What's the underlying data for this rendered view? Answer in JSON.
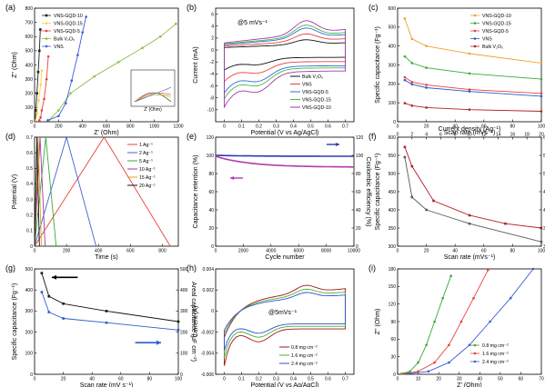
{
  "chart_data": [
    {
      "type": "line",
      "panel": "(a)",
      "xlabel": "Z' (Ohm)",
      "ylabel": "Z'' (Ohm)",
      "xlim": [
        0,
        1200
      ],
      "ylim": [
        0,
        800
      ],
      "xticks": [
        0,
        200,
        400,
        600,
        800,
        1000,
        1200
      ],
      "yticks": [
        0,
        100,
        200,
        300,
        400,
        500,
        600,
        700,
        800
      ],
      "legend": "top-left",
      "series": [
        {
          "name": "VNS-GQD-10",
          "color": "#222222",
          "marker": "square",
          "points": [
            [
              5,
              5
            ],
            [
              10,
              80
            ],
            [
              20,
              200
            ],
            [
              30,
              350
            ],
            [
              40,
              500
            ],
            [
              48,
              650
            ]
          ]
        },
        {
          "name": "VNS-GQD-15",
          "color": "#ffd23c",
          "marker": "circle",
          "points": [
            [
              10,
              10
            ],
            [
              20,
              60
            ],
            [
              35,
              150
            ],
            [
              50,
              260
            ],
            [
              60,
              360
            ]
          ]
        },
        {
          "name": "VNS-GQD-5",
          "color": "#e8413c",
          "marker": "circle",
          "points": [
            [
              40,
              10
            ],
            [
              50,
              30
            ],
            [
              60,
              80
            ],
            [
              80,
              160
            ],
            [
              100,
              300
            ],
            [
              115,
              460
            ]
          ]
        },
        {
          "name": "Bulk V₂O₅",
          "color": "#8cbc3c",
          "marker": "circle",
          "points": [
            [
              120,
              10
            ],
            [
              200,
              80
            ],
            [
              300,
              200
            ],
            [
              500,
              320
            ],
            [
              700,
              420
            ],
            [
              900,
              520
            ],
            [
              1050,
              600
            ],
            [
              1180,
              690
            ]
          ]
        },
        {
          "name": "VNS",
          "color": "#3c5cdc",
          "marker": "circle",
          "points": [
            [
              110,
              10
            ],
            [
              200,
              40
            ],
            [
              260,
              130
            ],
            [
              310,
              290
            ],
            [
              360,
              470
            ],
            [
              400,
              630
            ],
            [
              430,
              740
            ]
          ]
        }
      ],
      "inset": {
        "xlabel": "Z' (Ohm)",
        "ylabel": "Z'' (Ohm)",
        "series_colors": [
          "#222222",
          "#ffd23c",
          "#e8413c",
          "#8cbc3c",
          "#3c5cdc"
        ]
      }
    },
    {
      "type": "line",
      "panel": "(b)",
      "xlabel": "Potential (V vs Ag/AgCl)",
      "ylabel": "Current (mA)",
      "xlim": [
        -0.05,
        0.75
      ],
      "ylim": [
        -12,
        7
      ],
      "xticks": [
        0.0,
        0.1,
        0.2,
        0.3,
        0.4,
        0.5,
        0.6,
        0.7
      ],
      "yticks": [
        -10,
        -8,
        -6,
        -4,
        -2,
        0,
        2,
        4,
        6
      ],
      "annotation": "@5 mVs⁻¹",
      "legend": "bottom-right",
      "series": [
        {
          "name": "Bulk V₂O₅",
          "color": "#111111",
          "amp": 0.35
        },
        {
          "name": "VNS",
          "color": "#e8413c",
          "amp": 0.55
        },
        {
          "name": "VNS-GQD-5",
          "color": "#2a6fd0",
          "amp": 0.75
        },
        {
          "name": "VNS-GQD-15",
          "color": "#48b848",
          "amp": 0.85
        },
        {
          "name": "VNS-GQD-10",
          "color": "#a23aa8",
          "amp": 1.0
        }
      ]
    },
    {
      "type": "line",
      "panel": "(c)",
      "xlabel": "Scan rate (mVs⁻¹)",
      "ylabel": "Specific capacitance (Fg⁻¹)",
      "x": [
        5,
        10,
        20,
        50,
        100
      ],
      "xlim": [
        0,
        100
      ],
      "ylim": [
        0,
        600
      ],
      "xticks": [
        0,
        20,
        40,
        60,
        80,
        100
      ],
      "yticks": [
        0,
        100,
        200,
        300,
        400,
        500,
        600
      ],
      "legend": "top-right",
      "series": [
        {
          "name": "VNS-GQD-10",
          "color": "#f0a030",
          "values": [
            545,
            438,
            400,
            360,
            310
          ]
        },
        {
          "name": "VNS-GQD-15",
          "color": "#3aa83a",
          "values": [
            345,
            310,
            285,
            255,
            225
          ]
        },
        {
          "name": "VNS-GQD-5",
          "color": "#e8413c",
          "values": [
            235,
            210,
            195,
            170,
            150
          ]
        },
        {
          "name": "VNS",
          "color": "#2a5cd0",
          "values": [
            220,
            198,
            180,
            160,
            135
          ]
        },
        {
          "name": "Bulk V₂O₅",
          "color": "#b02020",
          "values": [
            98,
            85,
            75,
            64,
            55
          ]
        }
      ]
    },
    {
      "type": "line",
      "panel": "(d)",
      "xlabel": "Time (s)",
      "ylabel": "Potential (V)",
      "xlim": [
        0,
        900
      ],
      "ylim": [
        0,
        0.7
      ],
      "xticks": [
        0,
        200,
        400,
        600,
        800
      ],
      "yticks": [
        0.0,
        0.1,
        0.2,
        0.3,
        0.4,
        0.5,
        0.6,
        0.7
      ],
      "legend": "top-right",
      "series": [
        {
          "name": "1 Ag⁻¹",
          "color": "#e8413c",
          "charge_end": 435,
          "discharge_end": 850
        },
        {
          "name": "2 Ag⁻¹",
          "color": "#3c64d8",
          "charge_end": 200,
          "discharge_end": 385
        },
        {
          "name": "5 Ag⁻¹",
          "color": "#3aa83a",
          "charge_end": 70,
          "discharge_end": 135
        },
        {
          "name": "10 Ag⁻¹",
          "color": "#a23aa8",
          "charge_end": 34,
          "discharge_end": 66
        },
        {
          "name": "15 Ag⁻¹",
          "color": "#e0a020",
          "charge_end": 22,
          "discharge_end": 43
        },
        {
          "name": "20 Ag⁻¹",
          "color": "#111111",
          "charge_end": 15,
          "discharge_end": 30
        }
      ]
    },
    {
      "type": "line",
      "panel": "(e)",
      "xlabel": "Cycle number",
      "ylabel": "Capacitance retention (%)",
      "ylabel2": "Coulombic efficiency (%)",
      "xlim": [
        0,
        10000
      ],
      "ylim": [
        0,
        120
      ],
      "xticks": [
        0,
        2000,
        4000,
        6000,
        8000,
        10000
      ],
      "yticks": [
        0,
        20,
        40,
        60,
        80,
        100,
        120
      ],
      "series": [
        {
          "name": "Coulombic efficiency",
          "color": "#2a3cb0",
          "start": 100,
          "end": 99
        },
        {
          "name": "Capacitance retention",
          "color": "#b03ab0",
          "start": 99,
          "end": 87
        }
      ]
    },
    {
      "type": "line",
      "panel": "(f)",
      "xlabel": "Scan rate (mVs⁻¹)",
      "ylabel": "Specific capacitance (Fg⁻¹)",
      "ylabel2": "Specific capacitance (Fg⁻¹)",
      "xlabel2": "Current density (Ag⁻¹)",
      "xlim": [
        0,
        100
      ],
      "ylim": [
        300,
        600
      ],
      "xticks": [
        0,
        20,
        40,
        60,
        80,
        100
      ],
      "yticks": [
        300,
        350,
        400,
        450,
        500,
        550,
        600
      ],
      "xticks2": [
        0,
        2,
        4,
        6,
        8,
        10,
        12,
        14,
        16,
        18,
        20
      ],
      "yticks2": [
        300,
        350,
        400,
        450,
        500,
        550,
        600
      ],
      "series": [
        {
          "name": "Scan rate",
          "color": "#5a5a5a",
          "x": [
            5,
            10,
            20,
            50,
            100
          ],
          "values": [
            545,
            435,
            400,
            362,
            312
          ]
        },
        {
          "name": "Current density",
          "color": "#b02030",
          "x": [
            1,
            2,
            5,
            10,
            15,
            20
          ],
          "values": [
            573,
            520,
            425,
            385,
            362,
            350
          ]
        }
      ]
    },
    {
      "type": "line",
      "panel": "(g)",
      "xlabel": "Scan rate (mV s⁻¹)",
      "ylabel": "Specific capacitance (Fg⁻¹)",
      "ylabel2": "Areal capacitance (μF cm⁻²)",
      "xlim": [
        0,
        100
      ],
      "ylim": [
        0,
        500
      ],
      "xticks": [
        0,
        20,
        40,
        60,
        80,
        100
      ],
      "yticks": [
        0,
        100,
        200,
        300,
        400,
        500
      ],
      "yticks2": [
        0,
        100,
        200,
        300,
        400,
        500
      ],
      "series": [
        {
          "name": "Specific capacitance",
          "color": "#111111",
          "x": [
            5,
            10,
            20,
            50,
            100
          ],
          "values": [
            480,
            370,
            335,
            300,
            250
          ]
        },
        {
          "name": "Areal capacitance",
          "color": "#2a5cd0",
          "x": [
            5,
            10,
            20,
            50,
            100
          ],
          "values": [
            390,
            295,
            265,
            245,
            210
          ]
        }
      ]
    },
    {
      "type": "line",
      "panel": "(h)",
      "xlabel": "Potential (V vs Ag/AgCl)",
      "ylabel": "Current (A)",
      "xlim": [
        -0.05,
        0.75
      ],
      "ylim": [
        -0.006,
        0.004
      ],
      "xticks": [
        0.0,
        0.1,
        0.2,
        0.3,
        0.4,
        0.5,
        0.6,
        0.7
      ],
      "yticks": [
        -0.006,
        -0.004,
        -0.002,
        0.0,
        0.002,
        0.004
      ],
      "annotation": "@5mVs⁻¹",
      "legend": "bottom-right",
      "series": [
        {
          "name": "0.8 mg cm⁻²",
          "color": "#a01818",
          "amp": 1.0
        },
        {
          "name": "1.6 mg cm⁻²",
          "color": "#48b030",
          "amp": 0.85
        },
        {
          "name": "2.4 mg cm⁻²",
          "color": "#3050d0",
          "amp": 0.72
        }
      ]
    },
    {
      "type": "line",
      "panel": "(i)",
      "xlabel": "Z' (Ohm)",
      "ylabel": "Z'' (Ohm)",
      "xlim": [
        0,
        70
      ],
      "ylim": [
        0,
        180
      ],
      "xticks": [
        0,
        10,
        20,
        30,
        40,
        50,
        60,
        70
      ],
      "yticks": [
        0,
        30,
        60,
        90,
        120,
        150,
        180
      ],
      "legend": "bottom-right",
      "series": [
        {
          "name": "0.8 mg cm⁻²",
          "color": "#3aa83a",
          "points": [
            [
              2,
              1
            ],
            [
              6,
              5
            ],
            [
              10,
              20
            ],
            [
              14,
              50
            ],
            [
              18,
              90
            ],
            [
              22,
              130
            ],
            [
              26,
              168
            ]
          ]
        },
        {
          "name": "1.6 mg cm⁻²",
          "color": "#e8413c",
          "points": [
            [
              3,
              1
            ],
            [
              10,
              5
            ],
            [
              18,
              20
            ],
            [
              25,
              50
            ],
            [
              31,
              90
            ],
            [
              37,
              130
            ],
            [
              44,
              178
            ]
          ]
        },
        {
          "name": "2.4 mg cm⁻²",
          "color": "#3a5cd8",
          "points": [
            [
              5,
              1
            ],
            [
              15,
              5
            ],
            [
              25,
              20
            ],
            [
              35,
              50
            ],
            [
              45,
              90
            ],
            [
              55,
              130
            ],
            [
              66,
              180
            ]
          ]
        }
      ]
    }
  ]
}
